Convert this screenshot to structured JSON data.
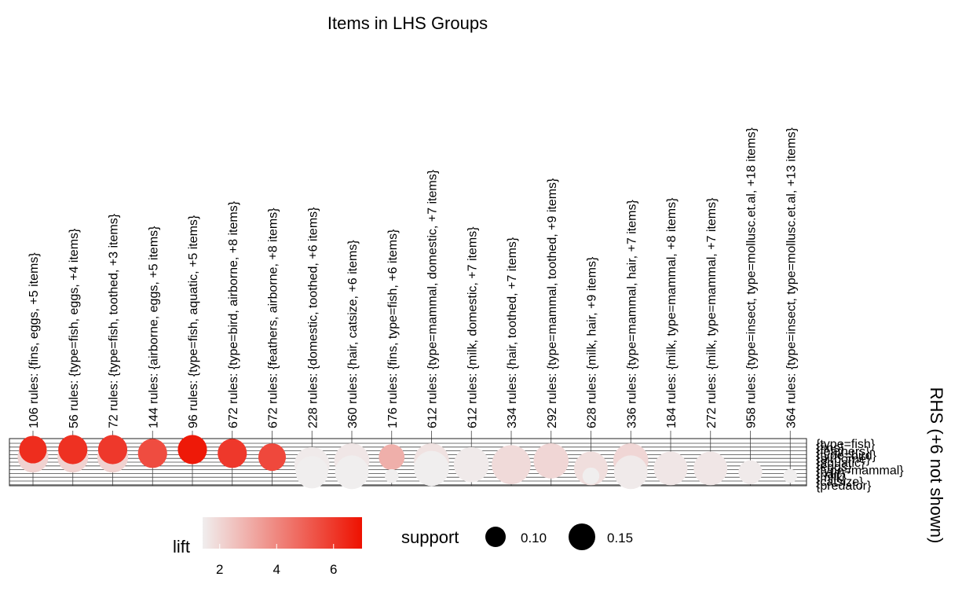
{
  "chart_data": {
    "type": "scatter",
    "title": "Items in LHS Groups",
    "xlabel": "",
    "ylabel": "RHS (+6 not shown)",
    "lhs_groups": [
      "106 rules: {fins, eggs, +5 items}",
      "56 rules: {type=fish, eggs, +4 items}",
      "72 rules: {type=fish, toothed, +3 items}",
      "144 rules: {airborne, eggs, +5 items}",
      "96 rules: {type=fish, aquatic, +5 items}",
      "672 rules: {type=bird, airborne, +8 items}",
      "672 rules: {feathers, airborne, +8 items}",
      "228 rules: {domestic, toothed, +6 items}",
      "360 rules: {hair, catsize, +6 items}",
      "176 rules: {fins, type=fish, +6 items}",
      "612 rules: {type=mammal, domestic, +7 items}",
      "612 rules: {milk, domestic, +7 items}",
      "334 rules: {hair, toothed, +7 items}",
      "292 rules: {type=mammal, toothed, +9 items}",
      "628 rules: {milk, hair, +9 items}",
      "336 rules: {type=mammal, hair, +7 items}",
      "184 rules: {milk, type=mammal, +8 items}",
      "272 rules: {milk, type=mammal, +7 items}",
      "958 rules: {type=insect, type=mollusc.et.al, +18 items}",
      "364 rules: {type=insect, type=mollusc.et.al, +13 items}"
    ],
    "rhs_items": [
      "{type=fish}",
      "{fins}",
      "{feathers}",
      "{type=bird}",
      "{airborne}",
      "{aquatic}",
      "{eggs}",
      "{type=mammal}",
      "{hair}",
      "{milk}",
      "{catsize}",
      "{predator}"
    ],
    "points": [
      {
        "x": 0,
        "rhs": 0,
        "support": 0.08,
        "lift": 6.3
      },
      {
        "x": 0,
        "rhs": 2,
        "support": 0.1,
        "lift": 2.1
      },
      {
        "x": 1,
        "rhs": 0,
        "support": 0.09,
        "lift": 6.2
      },
      {
        "x": 1,
        "rhs": 2,
        "support": 0.1,
        "lift": 2.1
      },
      {
        "x": 2,
        "rhs": 0,
        "support": 0.09,
        "lift": 6.0
      },
      {
        "x": 2,
        "rhs": 2,
        "support": 0.1,
        "lift": 2.1
      },
      {
        "x": 3,
        "rhs": 1,
        "support": 0.09,
        "lift": 5.5
      },
      {
        "x": 4,
        "rhs": 0,
        "support": 0.09,
        "lift": 6.8
      },
      {
        "x": 5,
        "rhs": 1,
        "support": 0.09,
        "lift": 6.0
      },
      {
        "x": 6,
        "rhs": 2,
        "support": 0.08,
        "lift": 5.6
      },
      {
        "x": 7,
        "rhs": 4,
        "support": 0.13,
        "lift": 1.5
      },
      {
        "x": 7,
        "rhs": 6,
        "support": 0.11,
        "lift": 1.4
      },
      {
        "x": 8,
        "rhs": 3,
        "support": 0.13,
        "lift": 1.6
      },
      {
        "x": 8,
        "rhs": 6,
        "support": 0.12,
        "lift": 1.4
      },
      {
        "x": 9,
        "rhs": 2,
        "support": 0.07,
        "lift": 3.0
      },
      {
        "x": 9,
        "rhs": 7,
        "support": 0.02,
        "lift": 1.4
      },
      {
        "x": 10,
        "rhs": 3,
        "support": 0.13,
        "lift": 1.7
      },
      {
        "x": 10,
        "rhs": 5,
        "support": 0.13,
        "lift": 1.4
      },
      {
        "x": 11,
        "rhs": 4,
        "support": 0.13,
        "lift": 1.5
      },
      {
        "x": 12,
        "rhs": 4,
        "support": 0.16,
        "lift": 1.9
      },
      {
        "x": 13,
        "rhs": 3,
        "support": 0.13,
        "lift": 2.0
      },
      {
        "x": 14,
        "rhs": 5,
        "support": 0.12,
        "lift": 1.8
      },
      {
        "x": 14,
        "rhs": 7,
        "support": 0.03,
        "lift": 1.4
      },
      {
        "x": 15,
        "rhs": 3,
        "support": 0.13,
        "lift": 2.0
      },
      {
        "x": 15,
        "rhs": 6,
        "support": 0.12,
        "lift": 1.5
      },
      {
        "x": 16,
        "rhs": 5,
        "support": 0.12,
        "lift": 1.6
      },
      {
        "x": 17,
        "rhs": 5,
        "support": 0.12,
        "lift": 1.6
      },
      {
        "x": 18,
        "rhs": 6,
        "support": 0.06,
        "lift": 1.5
      },
      {
        "x": 19,
        "rhs": 7,
        "support": 0.02,
        "lift": 1.4
      }
    ],
    "legend": {
      "lift_title": "lift",
      "lift_ticks": [
        2,
        4,
        6
      ],
      "lift_range": [
        1.4,
        7.0
      ],
      "color_low": "#f0eeee",
      "color_high": "#ee1100",
      "support_title": "support",
      "support_ticks": [
        0.1,
        0.15
      ]
    },
    "grid": true,
    "legend_position": "bottom"
  }
}
